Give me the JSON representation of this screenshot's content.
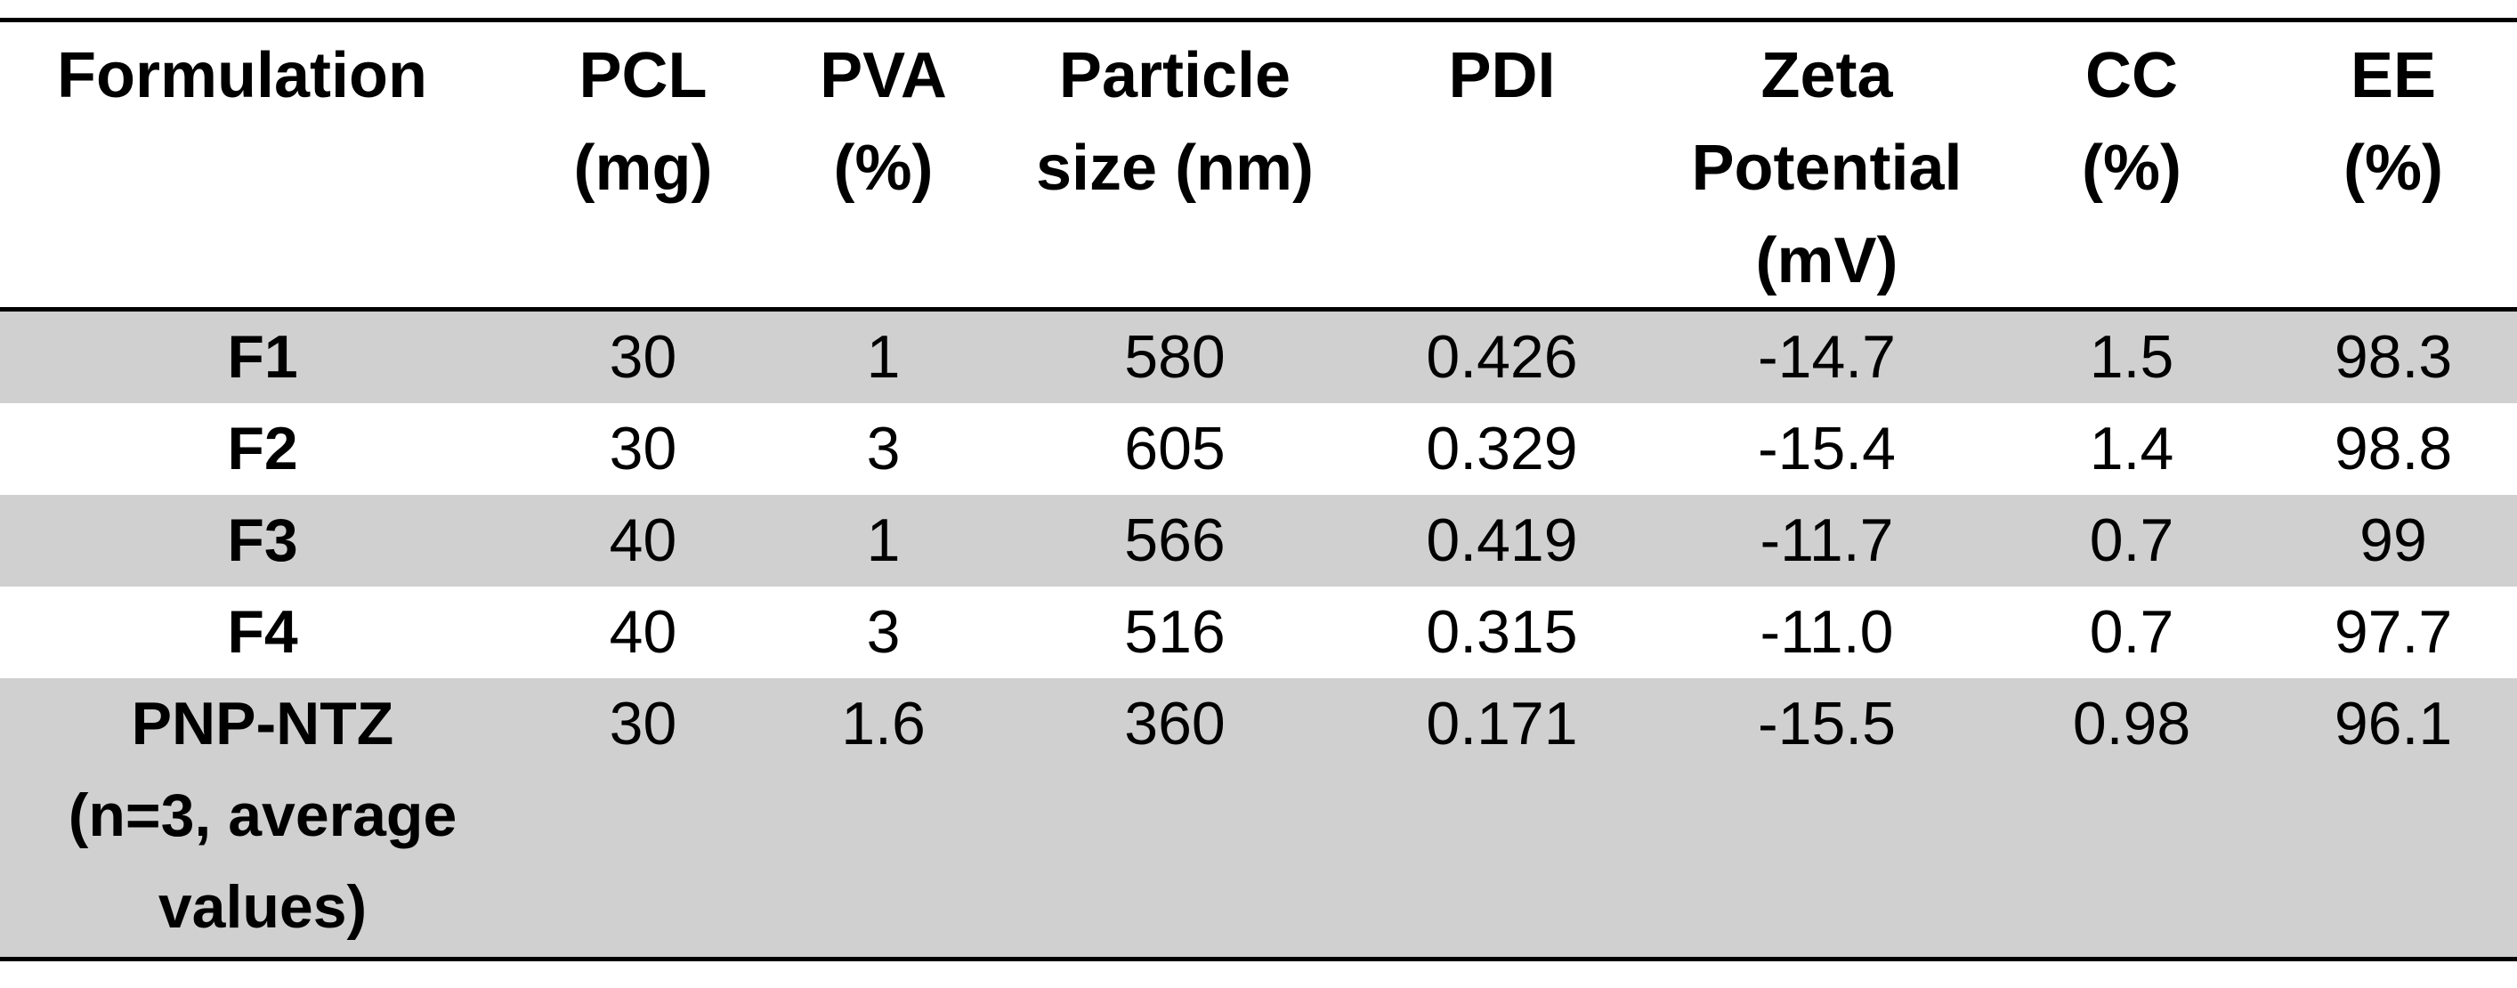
{
  "table": {
    "headers": [
      "Formulation",
      "PCL (mg)",
      "PVA (%)",
      "Particle size (nm)",
      "PDI",
      "Zeta Potential (mV)",
      "CC (%)",
      "EE (%)"
    ],
    "header_lines": [
      [
        "Formulation"
      ],
      [
        "PCL",
        "(mg)"
      ],
      [
        "PVA",
        "(%)"
      ],
      [
        "Particle",
        "size (nm)"
      ],
      [
        "PDI"
      ],
      [
        "Zeta",
        "Potential",
        "(mV)"
      ],
      [
        "CC",
        "(%)"
      ],
      [
        "EE",
        "(%)"
      ]
    ],
    "rows": [
      {
        "formulation": "F1",
        "pcl": "30",
        "pva": "1",
        "size": "580",
        "pdi": "0.426",
        "zeta": "-14.7",
        "cc": "1.5",
        "ee": "98.3"
      },
      {
        "formulation": "F2",
        "pcl": "30",
        "pva": "3",
        "size": "605",
        "pdi": "0.329",
        "zeta": "-15.4",
        "cc": "1.4",
        "ee": "98.8"
      },
      {
        "formulation": "F3",
        "pcl": "40",
        "pva": "1",
        "size": "566",
        "pdi": "0.419",
        "zeta": "-11.7",
        "cc": "0.7",
        "ee": "99"
      },
      {
        "formulation": "F4",
        "pcl": "40",
        "pva": "3",
        "size": "516",
        "pdi": "0.315",
        "zeta": "-11.0",
        "cc": "0.7",
        "ee": "97.7"
      },
      {
        "formulation_lines": [
          "PNP-NTZ",
          "(n=3, average",
          "values)"
        ],
        "pcl": "30",
        "pva": "1.6",
        "size": "360",
        "pdi": "0.171",
        "zeta": "-15.5",
        "cc": "0.98",
        "ee": "96.1"
      }
    ]
  },
  "colors": {
    "shaded_row": "#d0d0d0",
    "rule": "#000000"
  }
}
